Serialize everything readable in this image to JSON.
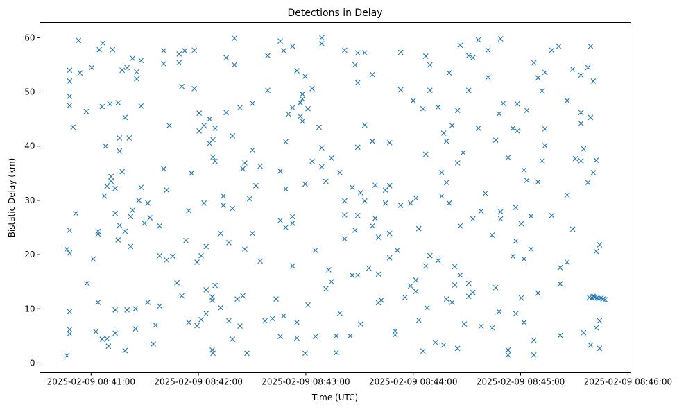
{
  "chart_data": {
    "type": "scatter",
    "title": "Detections in Delay",
    "xlabel": "Time (UTC)",
    "ylabel": "Bistatic Delay (km)",
    "x_units": "seconds after 2025-02-09 08:40:00",
    "xlim": [
      31.4,
      361.6
    ],
    "ylim": [
      -1.8,
      62.8
    ],
    "x_ticks": [
      {
        "value": 60,
        "label": "2025-02-09 08:41:00"
      },
      {
        "value": 120,
        "label": "2025-02-09 08:42:00"
      },
      {
        "value": 180,
        "label": "2025-02-09 08:43:00"
      },
      {
        "value": 240,
        "label": "2025-02-09 08:44:00"
      },
      {
        "value": 300,
        "label": "2025-02-09 08:45:00"
      },
      {
        "value": 360,
        "label": "2025-02-09 08:46:00"
      }
    ],
    "y_ticks": [
      {
        "value": 0,
        "label": "0"
      },
      {
        "value": 10,
        "label": "10"
      },
      {
        "value": 20,
        "label": "20"
      },
      {
        "value": 30,
        "label": "30"
      },
      {
        "value": 40,
        "label": "40"
      },
      {
        "value": 50,
        "label": "50"
      },
      {
        "value": 60,
        "label": "60"
      }
    ],
    "grid": false,
    "marker": "x",
    "color": "#1f77b4",
    "points": [
      [
        46.5,
        1.4
      ],
      [
        46.5,
        21
      ],
      [
        48.0,
        24.5
      ],
      [
        48.0,
        20.3
      ],
      [
        48.0,
        9.5
      ],
      [
        48.0,
        6.2
      ],
      [
        48.0,
        5.4
      ],
      [
        48.0,
        52
      ],
      [
        48.0,
        54
      ],
      [
        48.0,
        49.2
      ],
      [
        48.0,
        47.5
      ],
      [
        49.9,
        43.5
      ],
      [
        51.5,
        27.6
      ],
      [
        53.0,
        59.5
      ],
      [
        53.8,
        53.5
      ],
      [
        57.7,
        14.7
      ],
      [
        57.3,
        46.4
      ],
      [
        60.4,
        54.5
      ],
      [
        61.2,
        19.2
      ],
      [
        62.7,
        5.8
      ],
      [
        63.9,
        24.3
      ],
      [
        63.9,
        23.8
      ],
      [
        63.9,
        11.2
      ],
      [
        64.6,
        57.8
      ],
      [
        66.2,
        47.3
      ],
      [
        66.2,
        4.4
      ],
      [
        66.6,
        59
      ],
      [
        67.4,
        30.8
      ],
      [
        68.1,
        40
      ],
      [
        68.9,
        32.6
      ],
      [
        68.9,
        4.5
      ],
      [
        69.7,
        3.1
      ],
      [
        70.5,
        47.8
      ],
      [
        71.2,
        34.4
      ],
      [
        71.2,
        33.5
      ],
      [
        72.0,
        57.8
      ],
      [
        73.5,
        9.8
      ],
      [
        73.5,
        27.6
      ],
      [
        73.5,
        5.5
      ],
      [
        73.5,
        32.2
      ],
      [
        75.1,
        48
      ],
      [
        75.1,
        22.7
      ],
      [
        75.9,
        41.5
      ],
      [
        75.9,
        39.1
      ],
      [
        75.9,
        25.4
      ],
      [
        77.4,
        54
      ],
      [
        77.4,
        35.3
      ],
      [
        79.0,
        2.3
      ],
      [
        79.0,
        45.3
      ],
      [
        79.0,
        24.3
      ],
      [
        80.1,
        54.5
      ],
      [
        80.1,
        9.8
      ],
      [
        81.3,
        41.5
      ],
      [
        82.1,
        27
      ],
      [
        82.1,
        21.5
      ],
      [
        83.2,
        56.2
      ],
      [
        83.2,
        28.2
      ],
      [
        84.8,
        6.3
      ],
      [
        84.8,
        10
      ],
      [
        85.5,
        53.7
      ],
      [
        85.5,
        52.4
      ],
      [
        86.7,
        30
      ],
      [
        87.9,
        55.8
      ],
      [
        87.9,
        47.4
      ],
      [
        87.9,
        32.4
      ],
      [
        89.8,
        25.8
      ],
      [
        91.7,
        11.2
      ],
      [
        91.7,
        29.5
      ],
      [
        92.9,
        26.8
      ],
      [
        94.8,
        3.5
      ],
      [
        96.0,
        7
      ],
      [
        98.3,
        10.5
      ],
      [
        98.3,
        25.3
      ],
      [
        98.3,
        19.8
      ],
      [
        100.6,
        57.6
      ],
      [
        100.6,
        55.2
      ],
      [
        100.6,
        35.8
      ],
      [
        102.2,
        31.9
      ],
      [
        102.2,
        19
      ],
      [
        103.7,
        43.8
      ],
      [
        105.7,
        19.7
      ],
      [
        108.0,
        14.8
      ],
      [
        109.2,
        55.4
      ],
      [
        109.2,
        57
      ],
      [
        110.7,
        51
      ],
      [
        110.7,
        12.4
      ],
      [
        112.3,
        57.6
      ],
      [
        113.0,
        22.6
      ],
      [
        114.6,
        7.5
      ],
      [
        114.6,
        28.1
      ],
      [
        116.1,
        35
      ],
      [
        117.7,
        50.6
      ],
      [
        117.7,
        57.7
      ],
      [
        119.2,
        18.6
      ],
      [
        119.2,
        6.9
      ],
      [
        120.4,
        46.1
      ],
      [
        120.4,
        42.8
      ],
      [
        121.5,
        19.8
      ],
      [
        121.5,
        8
      ],
      [
        123.1,
        29.5
      ],
      [
        123.1,
        43.8
      ],
      [
        124.3,
        9.1
      ],
      [
        124.3,
        21.5
      ],
      [
        124.3,
        13.5
      ],
      [
        126.2,
        45
      ],
      [
        126.2,
        40.5
      ],
      [
        127.7,
        11.6
      ],
      [
        127.7,
        12.2
      ],
      [
        127.7,
        2.4
      ],
      [
        128.1,
        41.2
      ],
      [
        128.1,
        1.8
      ],
      [
        128.1,
        38
      ],
      [
        129.3,
        14.3
      ],
      [
        129.3,
        43.3
      ],
      [
        129.3,
        37.2
      ],
      [
        132.4,
        10.2
      ],
      [
        132.4,
        23.9
      ],
      [
        133.9,
        30.8
      ],
      [
        133.9,
        29.1
      ],
      [
        135.5,
        56.3
      ],
      [
        135.5,
        46.2
      ],
      [
        137.0,
        7.8
      ],
      [
        137.0,
        22.2
      ],
      [
        139.0,
        4.4
      ],
      [
        139.0,
        28.5
      ],
      [
        139.0,
        41.9
      ],
      [
        140.1,
        59.9
      ],
      [
        140.1,
        55
      ],
      [
        141.7,
        11.8
      ],
      [
        143.2,
        6.8
      ],
      [
        143.2,
        47.1
      ],
      [
        144.8,
        12.4
      ],
      [
        144.8,
        35.8
      ],
      [
        145.9,
        21
      ],
      [
        145.9,
        36.9
      ],
      [
        147.1,
        1.8
      ],
      [
        148.6,
        30.3
      ],
      [
        150.2,
        23.9
      ],
      [
        150.2,
        47.9
      ],
      [
        150.2,
        39.3
      ],
      [
        152.1,
        32.7
      ],
      [
        154.5,
        36.3
      ],
      [
        154.5,
        18.8
      ],
      [
        157.2,
        7.8
      ],
      [
        158.7,
        56.7
      ],
      [
        158.7,
        50.3
      ],
      [
        161.4,
        8.2
      ],
      [
        163.4,
        11.8
      ],
      [
        165.7,
        35.4
      ],
      [
        165.7,
        26.3
      ],
      [
        165.7,
        59.4
      ],
      [
        165.7,
        4.9
      ],
      [
        167.6,
        57.6
      ],
      [
        167.6,
        8.7
      ],
      [
        168.8,
        40.8
      ],
      [
        168.8,
        25
      ],
      [
        168.8,
        32.1
      ],
      [
        170.3,
        45.9
      ],
      [
        172.6,
        25.8
      ],
      [
        172.6,
        27
      ],
      [
        172.6,
        47.1
      ],
      [
        172.6,
        17.9
      ],
      [
        172.6,
        58.4
      ],
      [
        175.0,
        7.5
      ],
      [
        175.0,
        53.9
      ],
      [
        175.0,
        4.6
      ],
      [
        176.9,
        48
      ],
      [
        176.9,
        45.5
      ],
      [
        178.1,
        49.6
      ],
      [
        178.1,
        48.7
      ],
      [
        178.1,
        44.6
      ],
      [
        179.6,
        1.8
      ],
      [
        179.6,
        52.9
      ],
      [
        179.6,
        33
      ],
      [
        181.2,
        10.7
      ],
      [
        181.2,
        46.9
      ],
      [
        183.5,
        37.2
      ],
      [
        183.5,
        50.6
      ],
      [
        185.4,
        20.8
      ],
      [
        185.4,
        4.9
      ],
      [
        187.4,
        43.5
      ],
      [
        188.9,
        60
      ],
      [
        188.9,
        58.9
      ],
      [
        188.9,
        36.2
      ],
      [
        188.9,
        39.7
      ],
      [
        191.2,
        33.5
      ],
      [
        191.2,
        13.7
      ],
      [
        192.8,
        17.2
      ],
      [
        194.3,
        37.8
      ],
      [
        194.3,
        15
      ],
      [
        197.0,
        5
      ],
      [
        197.0,
        1.9
      ],
      [
        199.0,
        35.1
      ],
      [
        199.0,
        9.2
      ],
      [
        201.7,
        29.9
      ],
      [
        201.7,
        22.9
      ],
      [
        201.7,
        27.3
      ],
      [
        201.7,
        57.7
      ],
      [
        204.8,
        5
      ],
      [
        205.9,
        32.4
      ],
      [
        205.9,
        16.2
      ],
      [
        207.5,
        24.5
      ],
      [
        207.5,
        55
      ],
      [
        209.0,
        57.2
      ],
      [
        209.0,
        51.7
      ],
      [
        209.0,
        39.8
      ],
      [
        209.0,
        27.2
      ],
      [
        209.0,
        16.2
      ],
      [
        210.6,
        31.4
      ],
      [
        210.6,
        7.2
      ],
      [
        212.9,
        57.2
      ],
      [
        212.9,
        43.9
      ],
      [
        212.9,
        29.9
      ],
      [
        215.2,
        17.5
      ],
      [
        217.2,
        53.2
      ],
      [
        217.2,
        40.9
      ],
      [
        217.2,
        25.3
      ],
      [
        218.7,
        32.8
      ],
      [
        218.7,
        26.7
      ],
      [
        220.6,
        11.1
      ],
      [
        220.6,
        16.4
      ],
      [
        220.6,
        23.2
      ],
      [
        222.2,
        11.6
      ],
      [
        224.5,
        29.5
      ],
      [
        224.5,
        31.9
      ],
      [
        226.8,
        19.4
      ],
      [
        226.8,
        40.6
      ],
      [
        226.8,
        32.7
      ],
      [
        226.8,
        23.9
      ],
      [
        229.9,
        5.2
      ],
      [
        229.9,
        5.9
      ],
      [
        231.1,
        20.8
      ],
      [
        233.0,
        50.4
      ],
      [
        233.0,
        29.1
      ],
      [
        233.0,
        57.3
      ],
      [
        235.4,
        12.1
      ],
      [
        238.5,
        14.2
      ],
      [
        238.5,
        29.5
      ],
      [
        240.0,
        48.4
      ],
      [
        241.5,
        30.4
      ],
      [
        241.5,
        15.3
      ],
      [
        241.5,
        13.2
      ],
      [
        243.1,
        24.8
      ],
      [
        243.1,
        7.9
      ],
      [
        245.4,
        2.2
      ],
      [
        245.4,
        46.9
      ],
      [
        247.0,
        56.6
      ],
      [
        247.0,
        38.5
      ],
      [
        247.0,
        17.9
      ],
      [
        247.7,
        10.2
      ],
      [
        249.3,
        55
      ],
      [
        249.3,
        50.3
      ],
      [
        249.3,
        19.8
      ],
      [
        252.4,
        3.8
      ],
      [
        253.9,
        47.2
      ],
      [
        253.9,
        18.9
      ],
      [
        255.9,
        35.1
      ],
      [
        255.9,
        30.8
      ],
      [
        257.0,
        3.3
      ],
      [
        257.0,
        42.4
      ],
      [
        258.6,
        40.9
      ],
      [
        258.6,
        33.3
      ],
      [
        258.6,
        11.8
      ],
      [
        260.1,
        53.5
      ],
      [
        260.1,
        29.5
      ],
      [
        261.7,
        43.8
      ],
      [
        261.7,
        11.2
      ],
      [
        263.2,
        17.8
      ],
      [
        263.2,
        14.4
      ],
      [
        264.8,
        2.7
      ],
      [
        264.8,
        36.9
      ],
      [
        264.8,
        46.6
      ],
      [
        266.3,
        58.6
      ],
      [
        266.3,
        25.3
      ],
      [
        266.3,
        16.2
      ],
      [
        267.9,
        38.8
      ],
      [
        268.6,
        7.2
      ],
      [
        271.0,
        56.7
      ],
      [
        271.0,
        50.3
      ],
      [
        271.0,
        12.3
      ],
      [
        271.0,
        14.7
      ],
      [
        273.3,
        56.3
      ],
      [
        273.3,
        26.6
      ],
      [
        273.3,
        13
      ],
      [
        276.4,
        59.6
      ],
      [
        276.4,
        43.3
      ],
      [
        277.9,
        28
      ],
      [
        277.9,
        6.8
      ],
      [
        280.3,
        31.3
      ],
      [
        281.8,
        52.7
      ],
      [
        281.8,
        57.7
      ],
      [
        284.1,
        6.5
      ],
      [
        284.1,
        23.6
      ],
      [
        286.1,
        41.1
      ],
      [
        286.1,
        13.9
      ],
      [
        288.0,
        9.5
      ],
      [
        288.0,
        46
      ],
      [
        288.8,
        59.8
      ],
      [
        288.8,
        27.9
      ],
      [
        288.8,
        26.6
      ],
      [
        290.3,
        47.9
      ],
      [
        293.0,
        2.4
      ],
      [
        293.0,
        1.5
      ],
      [
        293.0,
        37.9
      ],
      [
        295.7,
        43.3
      ],
      [
        295.7,
        19.7
      ],
      [
        297.3,
        22.5
      ],
      [
        297.3,
        28.7
      ],
      [
        297.3,
        9.1
      ],
      [
        298.1,
        42.8
      ],
      [
        298.1,
        47.8
      ],
      [
        300.4,
        12
      ],
      [
        300.4,
        25.7
      ],
      [
        301.9,
        7.5
      ],
      [
        301.9,
        35.6
      ],
      [
        301.9,
        19.2
      ],
      [
        303.5,
        46.6
      ],
      [
        303.5,
        33.7
      ],
      [
        305.8,
        27.1
      ],
      [
        305.8,
        21
      ],
      [
        307.4,
        55.4
      ],
      [
        307.4,
        4.2
      ],
      [
        307.4,
        1.5
      ],
      [
        309.7,
        52.6
      ],
      [
        309.7,
        33.4
      ],
      [
        309.7,
        12.9
      ],
      [
        312.0,
        37.3
      ],
      [
        312.0,
        50.2
      ],
      [
        313.6,
        53.6
      ],
      [
        313.6,
        43.2
      ],
      [
        313.6,
        40.1
      ],
      [
        317.4,
        57.7
      ],
      [
        317.4,
        27.2
      ],
      [
        321.3,
        58.4
      ],
      [
        322.1,
        17.6
      ],
      [
        322.1,
        14.6
      ],
      [
        322.1,
        5.1
      ],
      [
        326.0,
        48.4
      ],
      [
        326.0,
        18.6
      ],
      [
        326.0,
        31
      ],
      [
        329.1,
        24.7
      ],
      [
        329.1,
        54.2
      ],
      [
        330.6,
        37.7
      ],
      [
        333.7,
        44.2
      ],
      [
        333.7,
        53.1
      ],
      [
        333.7,
        46.2
      ],
      [
        333.7,
        37.3
      ],
      [
        335.2,
        5.6
      ],
      [
        335.2,
        39.5
      ],
      [
        337.6,
        54.5
      ],
      [
        337.6,
        33.3
      ],
      [
        339.1,
        58.4
      ],
      [
        339.1,
        45.3
      ],
      [
        339.1,
        3.3
      ],
      [
        340.6,
        12.3
      ],
      [
        340.6,
        52
      ],
      [
        340.6,
        35.1
      ],
      [
        342.2,
        20.6
      ],
      [
        342.2,
        6.5
      ],
      [
        342.2,
        37.4
      ],
      [
        344.1,
        7.8
      ],
      [
        344.1,
        21.8
      ],
      [
        344.1,
        2.7
      ],
      [
        338.4,
        12.1
      ],
      [
        339.9,
        12.0
      ],
      [
        341.4,
        12.2
      ],
      [
        342.6,
        12.0
      ],
      [
        343.7,
        11.9
      ],
      [
        344.9,
        12.0
      ],
      [
        346.0,
        11.8
      ],
      [
        347.2,
        11.7
      ]
    ]
  }
}
